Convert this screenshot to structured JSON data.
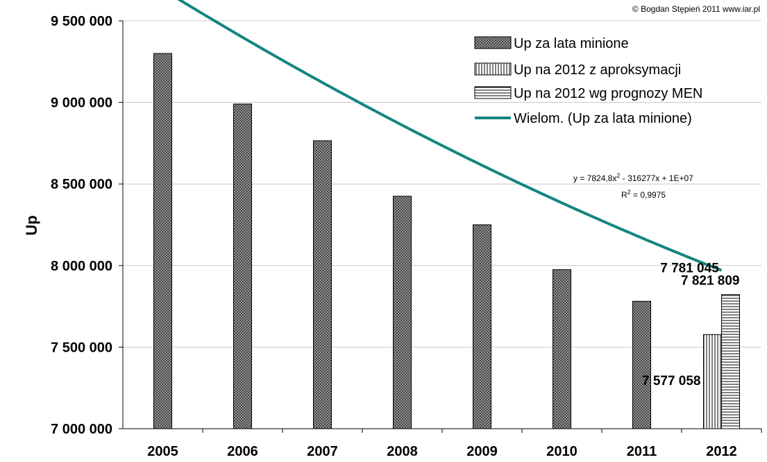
{
  "copyright": "© Bogdan Stępień 2011 www.iar.pl",
  "colors": {
    "trend": "#138581",
    "bar_fill": "#9c9c9c",
    "grid": "#c8c8c8"
  },
  "chart_data": {
    "type": "bar",
    "ylabel": "Up",
    "ylim": [
      7000000,
      9500000
    ],
    "yticks": [
      7000000,
      7500000,
      8000000,
      8500000,
      9000000,
      9500000
    ],
    "ytick_labels": [
      "7 000 000",
      "7 500 000",
      "8 000 000",
      "8 500 000",
      "9 000 000",
      "9 500 000"
    ],
    "categories": [
      "2005",
      "2006",
      "2007",
      "2008",
      "2009",
      "2010",
      "2011",
      "2012"
    ],
    "grid": "horizontal",
    "legend_position": "top-right",
    "series": [
      {
        "name": "Up za lata minione",
        "pattern": "crosshatch",
        "values": [
          9300000,
          8990000,
          8765000,
          8425000,
          8250000,
          7975000,
          7781045,
          null
        ]
      },
      {
        "name": "Up na 2012 z aproksymacji",
        "pattern": "vertical",
        "values": [
          null,
          null,
          null,
          null,
          null,
          null,
          null,
          7577058
        ]
      },
      {
        "name": "Up na 2012 wg prognozy MEN",
        "pattern": "horizontal",
        "values": [
          null,
          null,
          null,
          null,
          null,
          null,
          null,
          7821809
        ]
      }
    ],
    "trendline": {
      "name": "Wielom. (Up za lata minione)",
      "a": 7824.8,
      "b": -316277,
      "c": 10000000,
      "x_from": 1,
      "x_to": 8
    },
    "equation_text": {
      "prefix": "y = 7824,8x",
      "sup": "2",
      "suffix": " - 316277x + 1E+07"
    },
    "r2_text": {
      "prefix": "R",
      "sup": "2",
      "suffix": " = 0,9975"
    },
    "data_labels": [
      {
        "text": "7 781 045",
        "category": "2011",
        "series": 0
      },
      {
        "text": "7 821 809",
        "category": "2012",
        "series": 2
      },
      {
        "text": "7 577 058",
        "category": "2012",
        "series": 1
      }
    ]
  }
}
